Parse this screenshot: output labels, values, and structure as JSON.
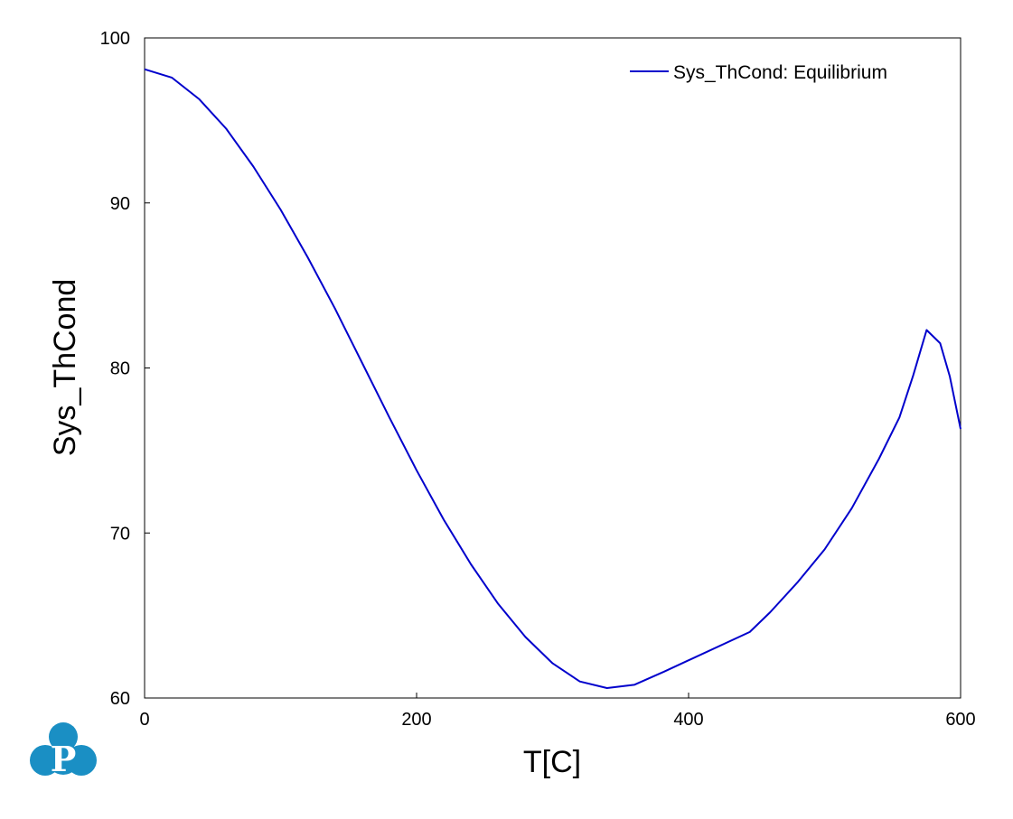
{
  "chart_data": {
    "type": "line",
    "xlabel": "T[C]",
    "ylabel": "Sys_ThCond",
    "xlim": [
      0,
      600
    ],
    "ylim": [
      60,
      100
    ],
    "xticks": [
      0,
      200,
      400,
      600
    ],
    "yticks": [
      60,
      70,
      80,
      90,
      100
    ],
    "grid": false,
    "legend_position": "top-right",
    "series": [
      {
        "name": "Sys_ThCond: Equilibrium",
        "color": "#0000cc",
        "x": [
          0,
          20,
          40,
          60,
          80,
          100,
          120,
          140,
          160,
          180,
          200,
          220,
          240,
          260,
          280,
          300,
          320,
          340,
          360,
          382,
          445,
          460,
          480,
          500,
          520,
          540,
          555,
          565,
          575,
          585,
          592,
          600
        ],
        "y": [
          98.1,
          97.6,
          96.3,
          94.5,
          92.2,
          89.6,
          86.7,
          83.6,
          80.3,
          77.0,
          73.8,
          70.8,
          68.1,
          65.7,
          63.7,
          62.1,
          61.0,
          60.6,
          60.8,
          61.6,
          64.0,
          65.2,
          67.0,
          69.0,
          71.5,
          74.5,
          77.0,
          79.5,
          82.3,
          81.5,
          79.5,
          76.3
        ]
      }
    ]
  },
  "logo": {
    "name": "publisher-logo",
    "glyph": "P",
    "color": "#1a8fc4"
  }
}
